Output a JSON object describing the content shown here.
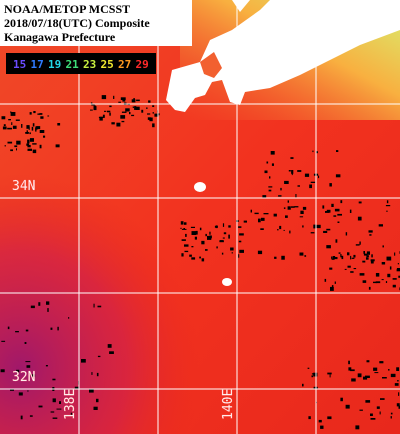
{
  "header": {
    "lines": [
      "NOAA/METOP MCSST",
      "2018/07/18(UTC) Composite",
      "Kanagawa Prefecture"
    ]
  },
  "legend": {
    "labels": [
      15,
      17,
      19,
      21,
      23,
      25,
      27,
      29
    ],
    "colors": [
      "#6a4cff",
      "#2f7cff",
      "#22d8e8",
      "#3fe07a",
      "#c8f040",
      "#f0e830",
      "#ff9a20",
      "#ff2a2a"
    ]
  },
  "grid_labels": {
    "latitudes": [
      "34N",
      "32N"
    ],
    "longitudes": [
      "138E",
      "140E"
    ]
  }
}
